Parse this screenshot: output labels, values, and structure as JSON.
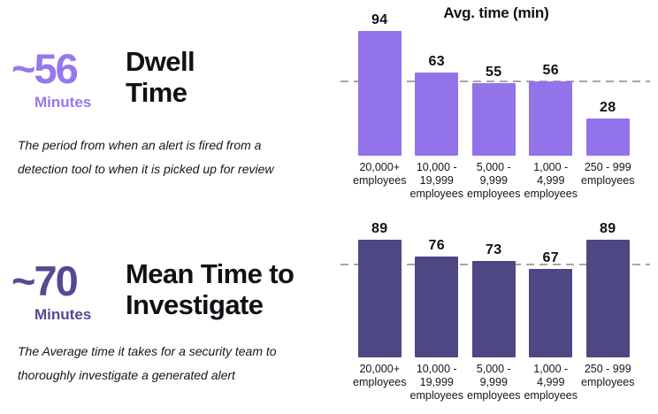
{
  "page": {
    "background": "#FFFFFF",
    "text_color": "#15151C"
  },
  "sections": [
    {
      "stat": "~56",
      "unit": "Minutes",
      "accent": "#9677EC",
      "title_lines": [
        "Dwell",
        "Time"
      ],
      "description_lines": [
        "The period from when an alert is fired from a",
        "detection tool to when it is picked up for review"
      ]
    },
    {
      "stat": "~70",
      "unit": "Minutes",
      "accent": "#544A91",
      "title_lines": [
        "Mean Time to",
        "Investigate"
      ],
      "description_lines": [
        "The Average time it takes for a security team to",
        "thoroughly investigate a generated alert"
      ]
    }
  ],
  "chart_data": [
    {
      "type": "bar",
      "title": "Avg. time (min)",
      "categories": [
        "20,000+ employees",
        "10,000 - 19,999 employees",
        "5,000 - 9,999 employees",
        "1,000 - 4,999 employees",
        "250 - 999 employees"
      ],
      "values": [
        94,
        63,
        55,
        56,
        28
      ],
      "bar_color": "#9273EA",
      "average_reference_line": 56,
      "reference_line_color": "#A6A6A6",
      "reference_line_style": "dashed",
      "ylim": [
        0,
        100
      ],
      "data_labels": true,
      "grid": false,
      "legend": false,
      "xlabel": "",
      "ylabel": ""
    },
    {
      "type": "bar",
      "title": "",
      "categories": [
        "20,000+ employees",
        "10,000 - 19,999 employees",
        "5,000 - 9,999 employees",
        "1,000 - 4,999 employees",
        "250 - 999 employees"
      ],
      "values": [
        89,
        76,
        73,
        67,
        89
      ],
      "bar_color": "#4D4783",
      "average_reference_line": 70,
      "reference_line_color": "#A6A6A6",
      "reference_line_style": "dashed",
      "ylim": [
        0,
        100
      ],
      "data_labels": true,
      "grid": false,
      "legend": false,
      "xlabel": "",
      "ylabel": ""
    }
  ]
}
